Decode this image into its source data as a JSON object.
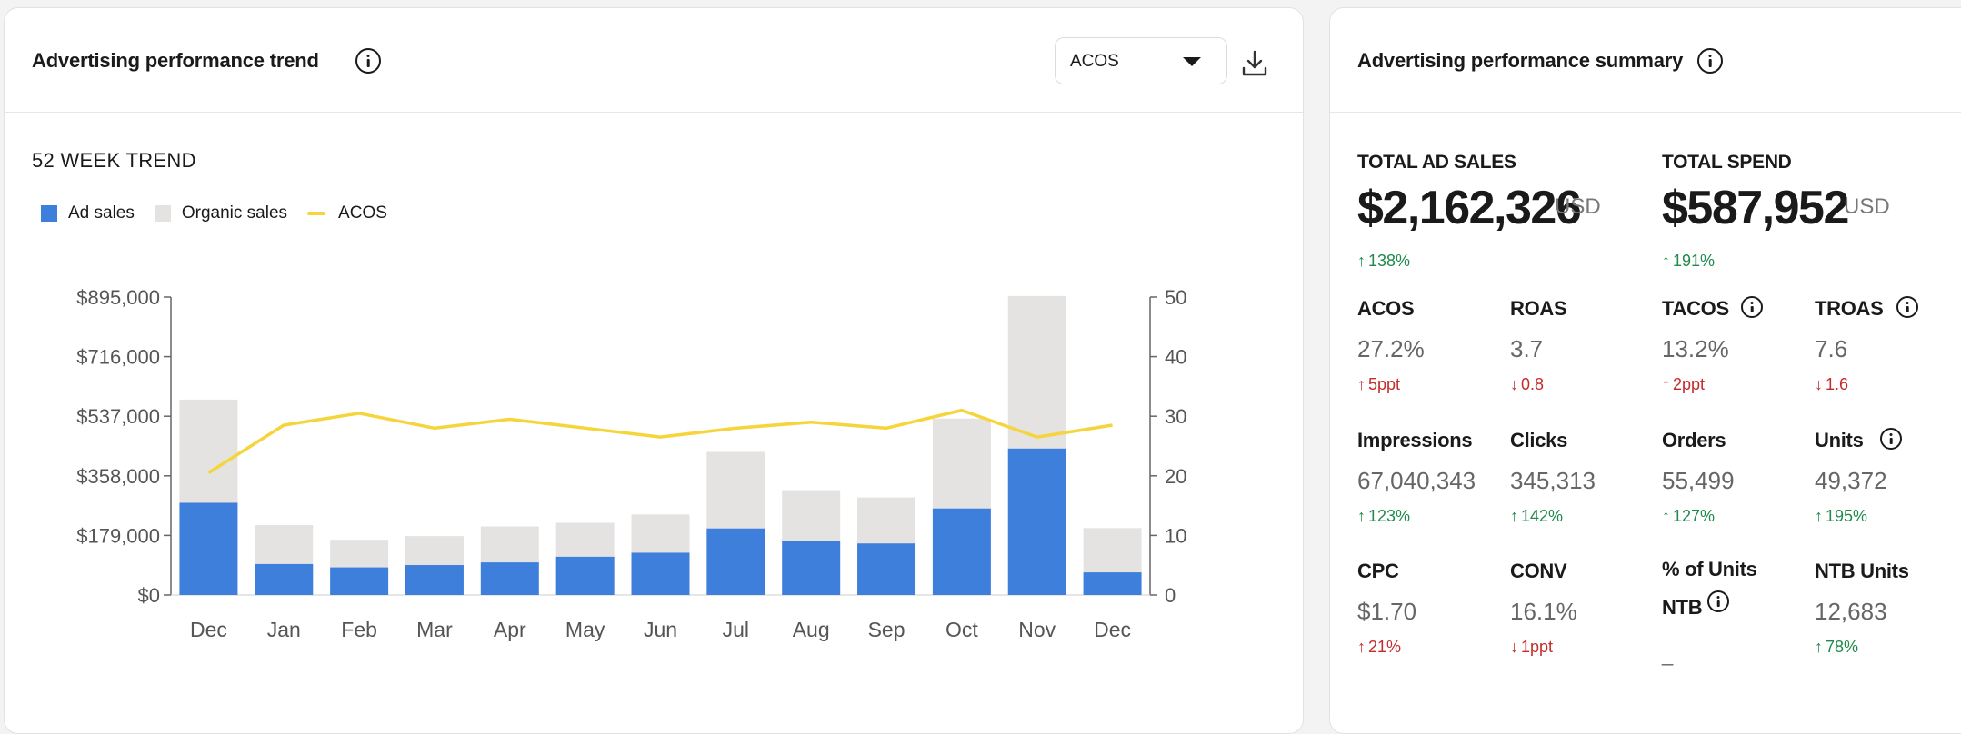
{
  "trend": {
    "title": "Advertising performance trend",
    "metric_selected": "ACOS",
    "section_label": "52 WEEK TREND",
    "legend": [
      {
        "name": "Ad sales",
        "color": "#3f7fdc",
        "kind": "box"
      },
      {
        "name": "Organic sales",
        "color": "#e4e3e1",
        "kind": "box"
      },
      {
        "name": "ACOS",
        "color": "#f5d53b",
        "kind": "line"
      }
    ]
  },
  "chart_data": {
    "type": "bar",
    "categories": [
      "Dec",
      "Jan",
      "Feb",
      "Mar",
      "Apr",
      "May",
      "Jun",
      "Jul",
      "Aug",
      "Sep",
      "Oct",
      "Nov",
      "Dec"
    ],
    "series": [
      {
        "name": "Ad sales",
        "type": "bar",
        "stack": "sales",
        "color": "#3f7fdc",
        "values": [
          277000,
          93000,
          83000,
          90000,
          98000,
          115000,
          127000,
          200000,
          162000,
          155000,
          260000,
          440000,
          68000
        ]
      },
      {
        "name": "Organic sales",
        "type": "bar",
        "stack": "sales",
        "color": "#e4e3e1",
        "values": [
          310000,
          117000,
          83000,
          87000,
          108000,
          102000,
          115000,
          230000,
          153000,
          138000,
          270000,
          458000,
          133000
        ]
      },
      {
        "name": "ACOS",
        "type": "line",
        "axis": "right",
        "color": "#f5d53b",
        "values": [
          20.5,
          28.5,
          30.5,
          28.0,
          29.5,
          28.0,
          26.5,
          28.0,
          29.0,
          28.0,
          31.0,
          26.5,
          28.5
        ]
      }
    ],
    "y_left": {
      "ticks": [
        "$0",
        "$179,000",
        "$358,000",
        "$537,000",
        "$716,000",
        "$895,000"
      ],
      "range": [
        0,
        895000
      ]
    },
    "y_right": {
      "ticks": [
        "0",
        "10",
        "20",
        "30",
        "40",
        "50"
      ],
      "range": [
        0,
        50
      ]
    },
    "legend_position": "top-left",
    "grid": false
  },
  "summary": {
    "title": "Advertising performance summary",
    "total_ad_sales": {
      "label": "TOTAL AD SALES",
      "value": "$2,162,326",
      "unit": "USD",
      "delta": "138%",
      "dir": "up"
    },
    "total_spend": {
      "label": "TOTAL SPEND",
      "value": "$587,952",
      "unit": "USD",
      "delta": "191%",
      "dir": "up"
    },
    "metrics": [
      {
        "label": "ACOS",
        "value": "27.2%",
        "delta": "5ppt",
        "dir": "up",
        "tone": "bad",
        "info": false
      },
      {
        "label": "ROAS",
        "value": "3.7",
        "delta": "0.8",
        "dir": "down",
        "tone": "bad",
        "info": false
      },
      {
        "label": "TACOS",
        "value": "13.2%",
        "delta": "2ppt",
        "dir": "up",
        "tone": "bad",
        "info": true
      },
      {
        "label": "TROAS",
        "value": "7.6",
        "delta": "1.6",
        "dir": "down",
        "tone": "bad",
        "info": true
      },
      {
        "label": "Impressions",
        "value": "67,040,343",
        "delta": "123%",
        "dir": "up",
        "tone": "good",
        "info": false
      },
      {
        "label": "Clicks",
        "value": "345,313",
        "delta": "142%",
        "dir": "up",
        "tone": "good",
        "info": false
      },
      {
        "label": "Orders",
        "value": "55,499",
        "delta": "127%",
        "dir": "up",
        "tone": "good",
        "info": false
      },
      {
        "label": "Units",
        "value": "49,372",
        "delta": "195%",
        "dir": "up",
        "tone": "good",
        "info": true
      },
      {
        "label": "CPC",
        "value": "$1.70",
        "delta": "21%",
        "dir": "up",
        "tone": "bad",
        "info": false
      },
      {
        "label": "CONV",
        "value": "16.1%",
        "delta": "1ppt",
        "dir": "down",
        "tone": "bad",
        "info": false
      },
      {
        "label": "% of Units NTB",
        "value": "_",
        "delta": "",
        "dir": "",
        "tone": "",
        "info": true
      },
      {
        "label": "NTB Units",
        "value": "12,683",
        "delta": "78%",
        "dir": "up",
        "tone": "good",
        "info": false
      }
    ]
  }
}
